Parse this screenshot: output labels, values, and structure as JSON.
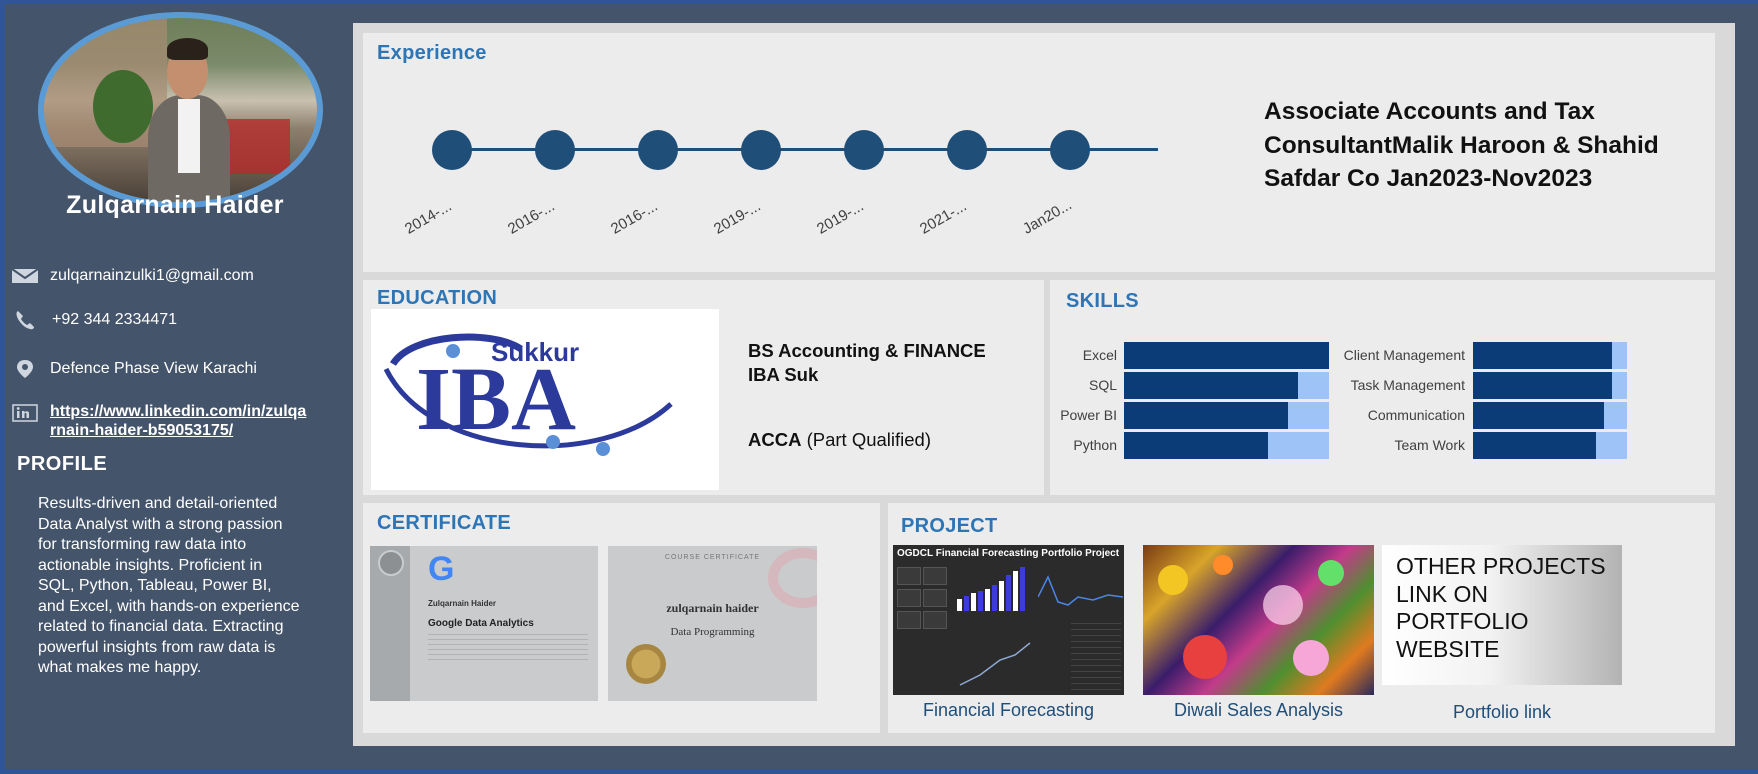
{
  "profile": {
    "name": "Zulqarnain Haider",
    "email": "zulqarnainzulki1@gmail.com",
    "phone": "+92 344 2334471",
    "location": "Defence Phase View Karachi",
    "linkedin": "https://www.linkedin.com/in/zulqarnain-haider-b59053175/",
    "profile_heading": "PROFILE",
    "profile_text": "Results-driven and detail-oriented Data Analyst with a strong passion for transforming raw data into actionable insights. Proficient in SQL, Python, Tableau, Power BI, and Excel, with hands-on experience related to financial data. Extracting powerful insights from raw data is what makes me happy."
  },
  "experience": {
    "title": "Experience",
    "timeline_labels": [
      "2014-...",
      "2016-...",
      "2016-...",
      "2019-...",
      "2019-...",
      "2021-...",
      "Jan20..."
    ],
    "detail": "Associate Accounts and Tax ConsultantMalik Haroon & Shahid Safdar Co Jan2023-Nov2023"
  },
  "education": {
    "title": "EDUCATION",
    "logo_text": "Sukkur IBA",
    "degree_line1": "BS Accounting & FINANCE",
    "degree_line2": "IBA Suk",
    "acca_bold": "ACCA",
    "acca_rest": "(Part Qualified)"
  },
  "skills": {
    "title": "SKILLS",
    "left": [
      {
        "name": "Excel",
        "level": 1.0
      },
      {
        "name": "SQL",
        "level": 0.85
      },
      {
        "name": "Power BI",
        "level": 0.8
      },
      {
        "name": "Python",
        "level": 0.7
      }
    ],
    "right": [
      {
        "name": "Client Management",
        "level": 0.9
      },
      {
        "name": "Task Management",
        "level": 0.9
      },
      {
        "name": "Communication",
        "level": 0.85
      },
      {
        "name": "Team Work",
        "level": 0.8
      }
    ]
  },
  "certificate": {
    "title": "CERTIFICATE",
    "cert1_name": "Zulqarnain Haider",
    "cert1_course": "Google Data Analytics",
    "cert1_logo": "G",
    "cert2_header": "COURSE CERTIFICATE",
    "cert2_name": "zulqarnain haider",
    "cert2_course": "Data Programming"
  },
  "project": {
    "title": "PROJECT",
    "items": [
      {
        "caption": "Financial Forecasting",
        "thumb_title": "OGDCL Financial Forecasting Portfolio Project"
      },
      {
        "caption": "Diwali Sales Analysis"
      },
      {
        "caption": "Portfolio link",
        "thumb_text": "OTHER PROJECTS LINK ON PORTFOLIO WEBSITE"
      }
    ]
  },
  "colors": {
    "sidebar_bg": "#44546a",
    "accent_title": "#2e75b6",
    "timeline": "#1f4e79",
    "skill_fill": "#0c3c78",
    "skill_track": "#9dc3f7"
  }
}
